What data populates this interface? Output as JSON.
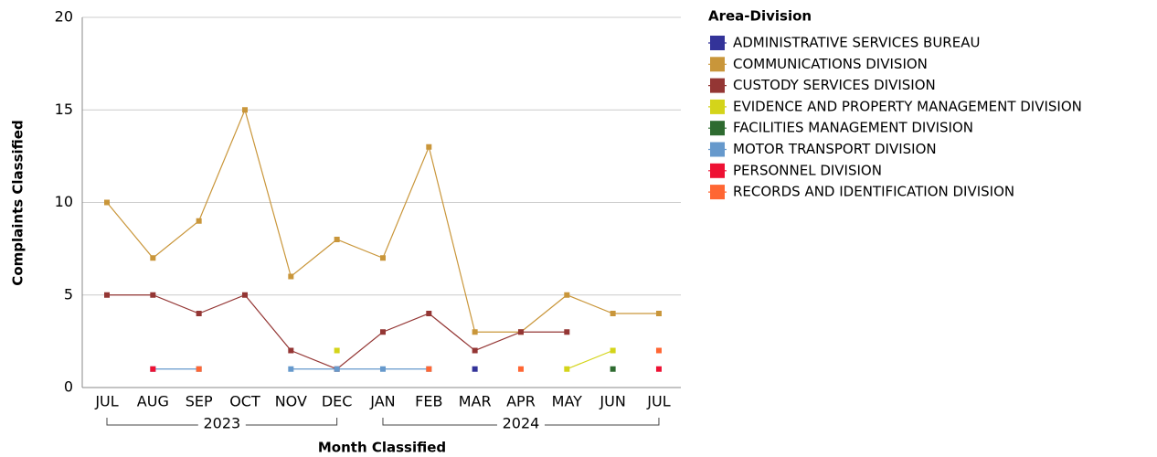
{
  "chart_data": {
    "type": "line",
    "x_label": "Month Classified",
    "y_label": "Complaints Classified",
    "legend_title": "Area-Division",
    "categories": [
      "JUL",
      "AUG",
      "SEP",
      "OCT",
      "NOV",
      "DEC",
      "JAN",
      "FEB",
      "MAR",
      "APR",
      "MAY",
      "JUN",
      "JUL"
    ],
    "category_groups": [
      {
        "label": "2023",
        "from": 0,
        "to": 5
      },
      {
        "label": "2024",
        "from": 6,
        "to": 12
      }
    ],
    "ylim": [
      0,
      20
    ],
    "yticks": [
      0,
      5,
      10,
      15,
      20
    ],
    "grid": true,
    "series": [
      {
        "name": "ADMINISTRATIVE SERVICES BUREAU",
        "color": "#333399",
        "values": [
          null,
          null,
          null,
          null,
          null,
          null,
          null,
          null,
          1,
          null,
          null,
          null,
          null
        ]
      },
      {
        "name": "COMMUNICATIONS DIVISION",
        "color": "#c9963a",
        "values": [
          10,
          7,
          9,
          15,
          6,
          8,
          7,
          13,
          3,
          3,
          5,
          4,
          4
        ]
      },
      {
        "name": "CUSTODY SERVICES DIVISION",
        "color": "#943634",
        "values": [
          5,
          5,
          4,
          5,
          2,
          1,
          3,
          4,
          2,
          3,
          3,
          null,
          null
        ]
      },
      {
        "name": "EVIDENCE AND PROPERTY MANAGEMENT DIVISION",
        "color": "#d4d41a",
        "values": [
          null,
          null,
          null,
          null,
          null,
          2,
          null,
          null,
          null,
          null,
          1,
          2,
          null
        ]
      },
      {
        "name": "FACILITIES MANAGEMENT DIVISION",
        "color": "#2e6b30",
        "values": [
          null,
          null,
          null,
          null,
          null,
          null,
          null,
          null,
          null,
          null,
          null,
          1,
          null
        ]
      },
      {
        "name": "MOTOR TRANSPORT DIVISION",
        "color": "#6699cc",
        "values": [
          null,
          1,
          1,
          null,
          1,
          1,
          1,
          1,
          null,
          null,
          null,
          null,
          null
        ]
      },
      {
        "name": "PERSONNEL DIVISION",
        "color": "#ee1133",
        "values": [
          null,
          1,
          null,
          null,
          null,
          null,
          null,
          null,
          null,
          null,
          null,
          null,
          1
        ]
      },
      {
        "name": "RECORDS AND IDENTIFICATION DIVISION",
        "color": "#ff6633",
        "values": [
          null,
          null,
          1,
          null,
          null,
          null,
          null,
          1,
          null,
          1,
          null,
          null,
          2
        ]
      }
    ]
  }
}
